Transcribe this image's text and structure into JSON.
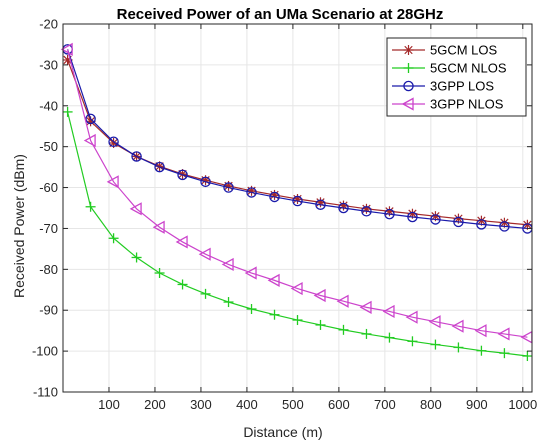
{
  "chart_data": {
    "type": "line",
    "title": "Received Power of an UMa Scenario at 28GHz",
    "xlabel": "Distance (m)",
    "ylabel": "Received Power (dBm)",
    "xlim": [
      0,
      1020
    ],
    "ylim": [
      -110,
      -20
    ],
    "xticks": [
      100,
      200,
      300,
      400,
      500,
      600,
      700,
      800,
      900,
      1000
    ],
    "yticks": [
      -110,
      -100,
      -90,
      -80,
      -70,
      -60,
      -50,
      -40,
      -30,
      -20
    ],
    "grid": true,
    "legend_position": "top-right",
    "x": [
      10,
      60,
      110,
      160,
      210,
      260,
      310,
      360,
      410,
      460,
      510,
      560,
      610,
      660,
      710,
      760,
      810,
      860,
      910,
      960,
      1010
    ],
    "series": [
      {
        "name": "5GCM LOS",
        "color": "#a52a2a",
        "marker": "asterisk",
        "values": [
          -28.8,
          -43.8,
          -49.1,
          -52.4,
          -54.8,
          -56.7,
          -58.2,
          -59.6,
          -60.8,
          -61.8,
          -62.8,
          -63.6,
          -64.4,
          -65.2,
          -65.8,
          -66.4,
          -67.0,
          -67.6,
          -68.1,
          -68.6,
          -69.1
        ]
      },
      {
        "name": "5GCM NLOS",
        "color": "#22cc22",
        "marker": "plus",
        "values": [
          -41.5,
          -64.7,
          -72.4,
          -77.1,
          -80.9,
          -83.7,
          -86.0,
          -88.0,
          -89.7,
          -91.1,
          -92.4,
          -93.6,
          -94.8,
          -95.8,
          -96.7,
          -97.6,
          -98.4,
          -99.1,
          -99.9,
          -100.5,
          -101.2
        ]
      },
      {
        "name": "3GPP LOS",
        "color": "#1a1aaa",
        "marker": "circle",
        "values": [
          -26.2,
          -43.2,
          -48.8,
          -52.4,
          -55.0,
          -56.9,
          -58.6,
          -60.0,
          -61.2,
          -62.3,
          -63.3,
          -64.2,
          -65.0,
          -65.8,
          -66.5,
          -67.2,
          -67.8,
          -68.4,
          -69.0,
          -69.5,
          -70.0
        ]
      },
      {
        "name": "3GPP NLOS",
        "color": "#cc44cc",
        "marker": "triangle-left",
        "values": [
          -26.2,
          -48.5,
          -58.6,
          -65.2,
          -69.7,
          -73.3,
          -76.3,
          -78.8,
          -80.9,
          -82.7,
          -84.7,
          -86.4,
          -87.8,
          -89.3,
          -90.3,
          -91.7,
          -92.8,
          -93.9,
          -95.0,
          -95.8,
          -96.6
        ]
      }
    ]
  }
}
